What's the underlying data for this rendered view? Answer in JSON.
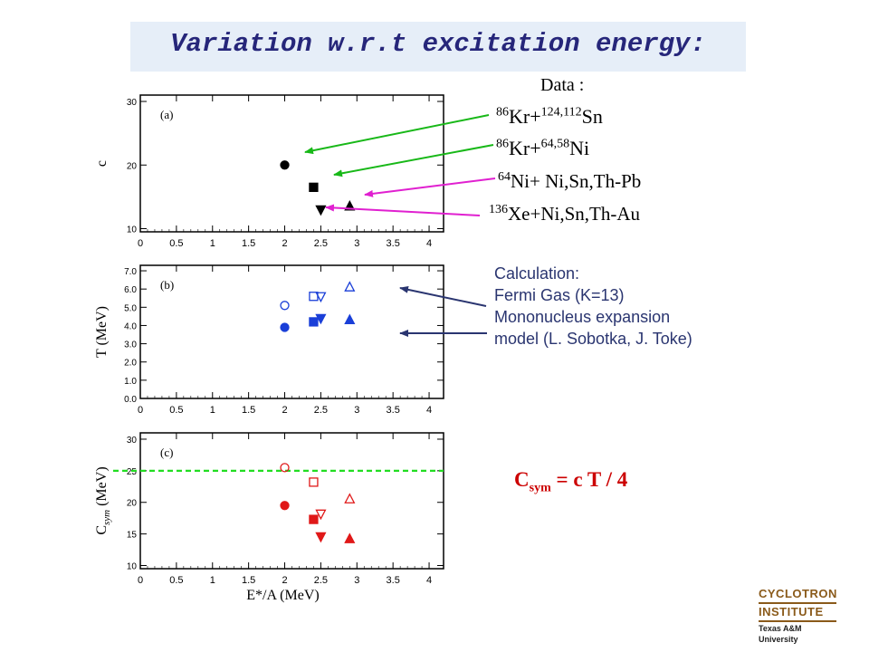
{
  "title": "Variation w.r.t  excitation energy:",
  "data_legend": {
    "heading": "Data :",
    "items": [
      {
        "pre": "86",
        "base": "Kr+",
        "sup": "124,112",
        "post": "Sn"
      },
      {
        "pre": "86",
        "base": "Kr+",
        "sup": "64,58",
        "post": "Ni"
      },
      {
        "pre": "64",
        "base": "Ni+ Ni,Sn,Th-Pb",
        "sup": "",
        "post": ""
      },
      {
        "pre": "136",
        "base": "Xe+Ni,Sn,Th-Au",
        "sup": "",
        "post": ""
      }
    ]
  },
  "calculation": {
    "lines": [
      "Calculation:",
      "Fermi Gas (K=13)",
      "Mononucleus expansion",
      "model (L. Sobotka, J. Toke)"
    ]
  },
  "formula": {
    "main": "C",
    "sub": "sym",
    "rest": " = c T / 4"
  },
  "logo": {
    "line1": "CYCLOTRON",
    "line2": "INSTITUTE",
    "line3": "Texas A&M University"
  },
  "colors": {
    "title": "#26267a",
    "green_arrow": "#18b818",
    "magenta_arrow": "#e020d0",
    "navy_arrow": "#2a3570",
    "blue_data": "#1a3fd8",
    "red_data": "#e01818",
    "dashed_line": "#22dd22"
  },
  "chart_data": [
    {
      "type": "scatter",
      "panel_label": "(a)",
      "ylabel": "c",
      "xlim": [
        0,
        4.2
      ],
      "ylim": [
        9.5,
        31
      ],
      "xticks": [
        0,
        0.5,
        1,
        1.5,
        2,
        2.5,
        3,
        3.5,
        4
      ],
      "xtick_labels": [
        "0",
        "0.5",
        "1",
        "1.5",
        "2",
        "2.5",
        "3",
        "3.5",
        "4"
      ],
      "yticks": [
        10,
        20,
        30
      ],
      "ytick_labels": [
        "10",
        "20",
        "30"
      ],
      "series": [
        {
          "marker": "circle",
          "fill": "filled",
          "color": "#000000",
          "points": [
            [
              2.0,
              20.0
            ]
          ]
        },
        {
          "marker": "square",
          "fill": "filled",
          "color": "#000000",
          "points": [
            [
              2.4,
              16.5
            ]
          ]
        },
        {
          "marker": "triangle-down",
          "fill": "filled",
          "color": "#000000",
          "points": [
            [
              2.5,
              13.0
            ]
          ]
        },
        {
          "marker": "triangle-up",
          "fill": "filled",
          "color": "#000000",
          "points": [
            [
              2.9,
              13.5
            ]
          ]
        }
      ]
    },
    {
      "type": "scatter",
      "panel_label": "(b)",
      "ylabel": "T   (MeV)",
      "xlim": [
        0,
        4.2
      ],
      "ylim": [
        0,
        7.3
      ],
      "xticks": [
        0,
        0.5,
        1,
        1.5,
        2,
        2.5,
        3,
        3.5,
        4
      ],
      "xtick_labels": [
        "0",
        "0.5",
        "1",
        "1.5",
        "2",
        "2.5",
        "3",
        "3.5",
        "4"
      ],
      "yticks": [
        0,
        1,
        2,
        3,
        4,
        5,
        6,
        7
      ],
      "ytick_labels": [
        "0.0",
        "1.0",
        "2.0",
        "3.0",
        "4.0",
        "5.0",
        "6.0",
        "7.0"
      ],
      "series": [
        {
          "marker": "circle",
          "fill": "filled",
          "color": "#1a3fd8",
          "points": [
            [
              2.0,
              3.9
            ]
          ]
        },
        {
          "marker": "square",
          "fill": "filled",
          "color": "#1a3fd8",
          "points": [
            [
              2.4,
              4.2
            ]
          ]
        },
        {
          "marker": "triangle-down",
          "fill": "filled",
          "color": "#1a3fd8",
          "points": [
            [
              2.5,
              4.4
            ]
          ]
        },
        {
          "marker": "triangle-up",
          "fill": "filled",
          "color": "#1a3fd8",
          "points": [
            [
              2.9,
              4.3
            ]
          ]
        },
        {
          "marker": "circle",
          "fill": "open",
          "color": "#1a3fd8",
          "points": [
            [
              2.0,
              5.1
            ]
          ]
        },
        {
          "marker": "square",
          "fill": "open",
          "color": "#1a3fd8",
          "points": [
            [
              2.4,
              5.6
            ]
          ]
        },
        {
          "marker": "triangle-down",
          "fill": "open",
          "color": "#1a3fd8",
          "points": [
            [
              2.5,
              5.6
            ]
          ]
        },
        {
          "marker": "triangle-up",
          "fill": "open",
          "color": "#1a3fd8",
          "points": [
            [
              2.9,
              6.1
            ]
          ]
        }
      ]
    },
    {
      "type": "scatter",
      "panel_label": "(c)",
      "ylabel": "C_sym (MeV)",
      "xlabel": "E*/A (MeV)",
      "xlim": [
        0,
        4.2
      ],
      "ylim": [
        9.5,
        31
      ],
      "xticks": [
        0,
        0.5,
        1,
        1.5,
        2,
        2.5,
        3,
        3.5,
        4
      ],
      "xtick_labels": [
        "0",
        "0.5",
        "1",
        "1.5",
        "2",
        "2.5",
        "3",
        "3.5",
        "4"
      ],
      "yticks": [
        10,
        15,
        20,
        25,
        30
      ],
      "ytick_labels": [
        "10",
        "15",
        "20",
        "25",
        "30"
      ],
      "reference_line": {
        "y": 25,
        "style": "dashed",
        "color": "#22dd22"
      },
      "series": [
        {
          "marker": "circle",
          "fill": "filled",
          "color": "#e01818",
          "points": [
            [
              2.0,
              19.5
            ]
          ]
        },
        {
          "marker": "square",
          "fill": "filled",
          "color": "#e01818",
          "points": [
            [
              2.4,
              17.3
            ]
          ]
        },
        {
          "marker": "triangle-down",
          "fill": "filled",
          "color": "#e01818",
          "points": [
            [
              2.5,
              14.6
            ]
          ]
        },
        {
          "marker": "triangle-up",
          "fill": "filled",
          "color": "#e01818",
          "points": [
            [
              2.9,
              14.2
            ]
          ]
        },
        {
          "marker": "circle",
          "fill": "open",
          "color": "#e01818",
          "points": [
            [
              2.0,
              25.5
            ]
          ]
        },
        {
          "marker": "square",
          "fill": "open",
          "color": "#e01818",
          "points": [
            [
              2.4,
              23.2
            ]
          ]
        },
        {
          "marker": "triangle-down",
          "fill": "open",
          "color": "#e01818",
          "points": [
            [
              2.5,
              18.2
            ]
          ]
        },
        {
          "marker": "triangle-up",
          "fill": "open",
          "color": "#e01818",
          "points": [
            [
              2.9,
              20.5
            ]
          ]
        }
      ]
    }
  ]
}
